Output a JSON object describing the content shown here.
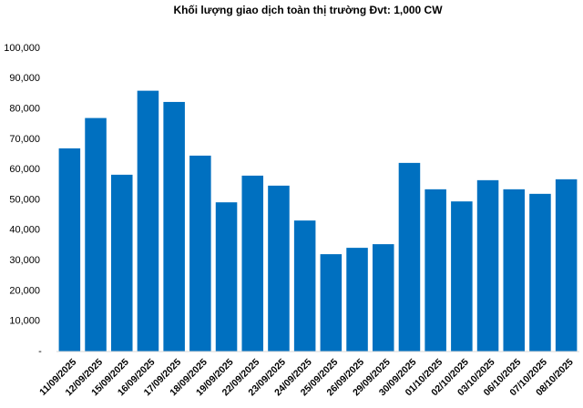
{
  "chart_data": {
    "type": "bar",
    "title": "Khối lượng giao dịch toàn thị trường Đvt: 1,000 CW",
    "categories": [
      "11/09/2025",
      "12/09/2025",
      "15/09/2025",
      "16/09/2025",
      "17/09/2025",
      "18/09/2025",
      "19/09/2025",
      "22/09/2025",
      "23/09/2025",
      "24/09/2025",
      "25/09/2025",
      "26/09/2025",
      "29/09/2025",
      "30/09/2025",
      "01/10/2025",
      "02/10/2025",
      "03/10/2025",
      "06/10/2025",
      "07/10/2025",
      "08/10/2025"
    ],
    "values": [
      67000,
      77000,
      58300,
      86000,
      82300,
      64600,
      49200,
      58000,
      54700,
      43200,
      32100,
      34200,
      35400,
      62200,
      53500,
      49500,
      56500,
      53500,
      52000,
      56800
    ],
    "color": "#0070c0",
    "ylim": [
      0,
      100000
    ],
    "yticks": [
      {
        "value": 0,
        "label": "-"
      },
      {
        "value": 10000,
        "label": "10,000"
      },
      {
        "value": 20000,
        "label": "20,000"
      },
      {
        "value": 30000,
        "label": "30,000"
      },
      {
        "value": 40000,
        "label": "40,000"
      },
      {
        "value": 50000,
        "label": "50,000"
      },
      {
        "value": 60000,
        "label": "60,000"
      },
      {
        "value": 70000,
        "label": "70,000"
      },
      {
        "value": 80000,
        "label": "80,000"
      },
      {
        "value": 90000,
        "label": "90,000"
      },
      {
        "value": 100000,
        "label": "100,000"
      }
    ],
    "grid": false
  }
}
